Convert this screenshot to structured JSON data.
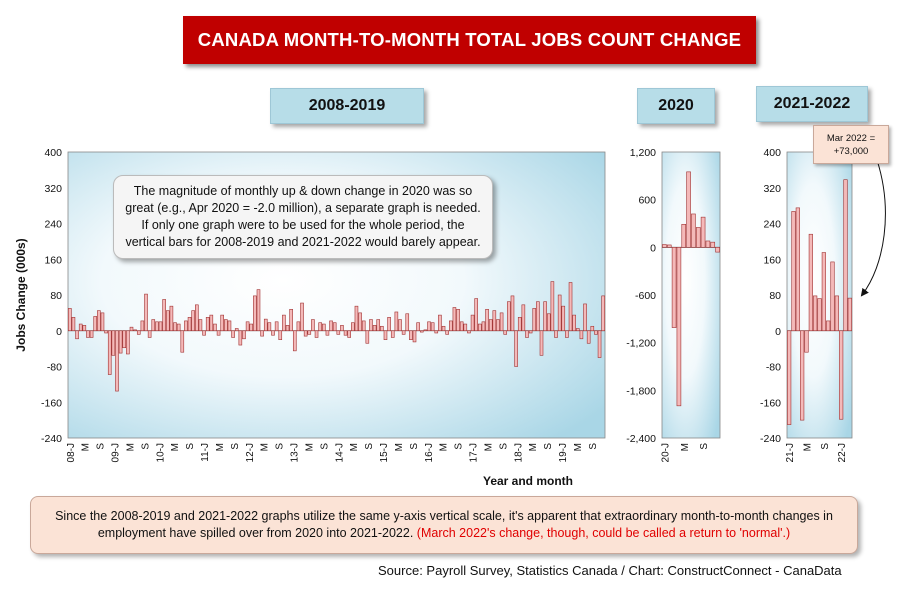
{
  "title": "CANADA MONTH-TO-MONTH TOTAL JOBS COUNT CHANGE",
  "panel_titles": [
    "2008-2019",
    "2020",
    "2021-2022"
  ],
  "callout": {
    "line1": "The magnitude of monthly up & down change in 2020 was so",
    "line2": "great (e.g., Apr 2020 = -2.0 million), a separate graph is needed.",
    "line3": "If only one graph were to be used for the whole period, the",
    "line4": "vertical bars for 2008-2019 and 2021-2022 would barely appear."
  },
  "mar_note": {
    "line1": "Mar 2022 =",
    "line2": "+73,000"
  },
  "bottom_note": {
    "text": "Since the 2008-2019 and 2021-2022 graphs utilize the same y-axis vertical scale, it's apparent that extraordinary month-to-month changes in employment have spilled over from 2020 into 2021-2022.",
    "red_text": "(March 2022's change, though, could be called a return to 'normal'.)"
  },
  "source": "Source: Payroll Survey, Statistics Canada / Chart: ConstructConnect - CanaData",
  "colors": {
    "bar_fill": "#f4b9b9",
    "bar_stroke": "#a03030",
    "title_bg": "#c00000",
    "panel_bg": "#b7dde8"
  },
  "chart_data": [
    {
      "type": "bar",
      "title": "2008-2019",
      "ylabel": "Jobs Change (000s)",
      "xlabel": "Year and month",
      "ylim": [
        -240,
        400
      ],
      "yticks": [
        "400",
        "320",
        "240",
        "160",
        "80",
        "0",
        "-80",
        "-160",
        "-240"
      ],
      "xticks": [
        "08-J",
        "M",
        "S",
        "09-J",
        "M",
        "S",
        "10-J",
        "M",
        "S",
        "11-J",
        "M",
        "S",
        "12-J",
        "M",
        "S",
        "13-J",
        "M",
        "S",
        "14-J",
        "M",
        "S",
        "15-J",
        "M",
        "S",
        "16-J",
        "M",
        "S",
        "17-J",
        "M",
        "S",
        "18-J",
        "M",
        "S",
        "19-J",
        "M",
        "S"
      ],
      "values": [
        50,
        30,
        -18,
        15,
        12,
        -15,
        -15,
        32,
        45,
        40,
        -5,
        -98,
        -55,
        -135,
        -50,
        -38,
        -52,
        8,
        2,
        -8,
        22,
        82,
        -15,
        25,
        20,
        20,
        70,
        45,
        55,
        18,
        15,
        -48,
        22,
        30,
        45,
        58,
        25,
        -10,
        30,
        35,
        15,
        -10,
        35,
        25,
        22,
        -15,
        5,
        -32,
        -18,
        20,
        15,
        78,
        92,
        -12,
        26,
        18,
        -10,
        20,
        -20,
        35,
        12,
        48,
        -45,
        20,
        62,
        -12,
        -8,
        25,
        -15,
        18,
        15,
        -10,
        22,
        18,
        -8,
        12,
        -10,
        -15,
        18,
        55,
        40,
        22,
        -28,
        25,
        12,
        25,
        10,
        -20,
        30,
        -15,
        42,
        25,
        -8,
        38,
        -20,
        -25,
        18,
        -3,
        2,
        20,
        18,
        -5,
        35,
        10,
        -8,
        22,
        52,
        48,
        20,
        15,
        -5,
        35,
        72,
        15,
        20,
        48,
        25,
        45,
        25,
        40,
        -8,
        65,
        78,
        -80,
        30,
        58,
        -15,
        -5,
        50,
        65,
        -55,
        65,
        38,
        110,
        -15,
        80,
        55,
        -15,
        108,
        35,
        5,
        -18,
        60,
        -28,
        10,
        -8,
        -60,
        78
      ]
    },
    {
      "type": "bar",
      "title": "2020",
      "ylim": [
        -2400,
        1200
      ],
      "yticks": [
        "1,200",
        "600",
        "0",
        "-600",
        "-1,200",
        "-1,800",
        "-2,400"
      ],
      "xticks": [
        "20-J",
        "M",
        "S"
      ],
      "values": [
        35,
        30,
        -1010,
        -1995,
        290,
        950,
        420,
        250,
        380,
        80,
        65,
        -60
      ]
    },
    {
      "type": "bar",
      "title": "2021-2022",
      "ylim": [
        -240,
        400
      ],
      "yticks": [
        "400",
        "320",
        "240",
        "160",
        "80",
        "0",
        "-80",
        "-160",
        "-240"
      ],
      "xticks": [
        "21-J",
        "M",
        "S",
        "22-J"
      ],
      "values": [
        -210,
        267,
        275,
        -200,
        -48,
        216,
        78,
        72,
        175,
        22,
        154,
        78,
        -198,
        338,
        73
      ]
    }
  ]
}
